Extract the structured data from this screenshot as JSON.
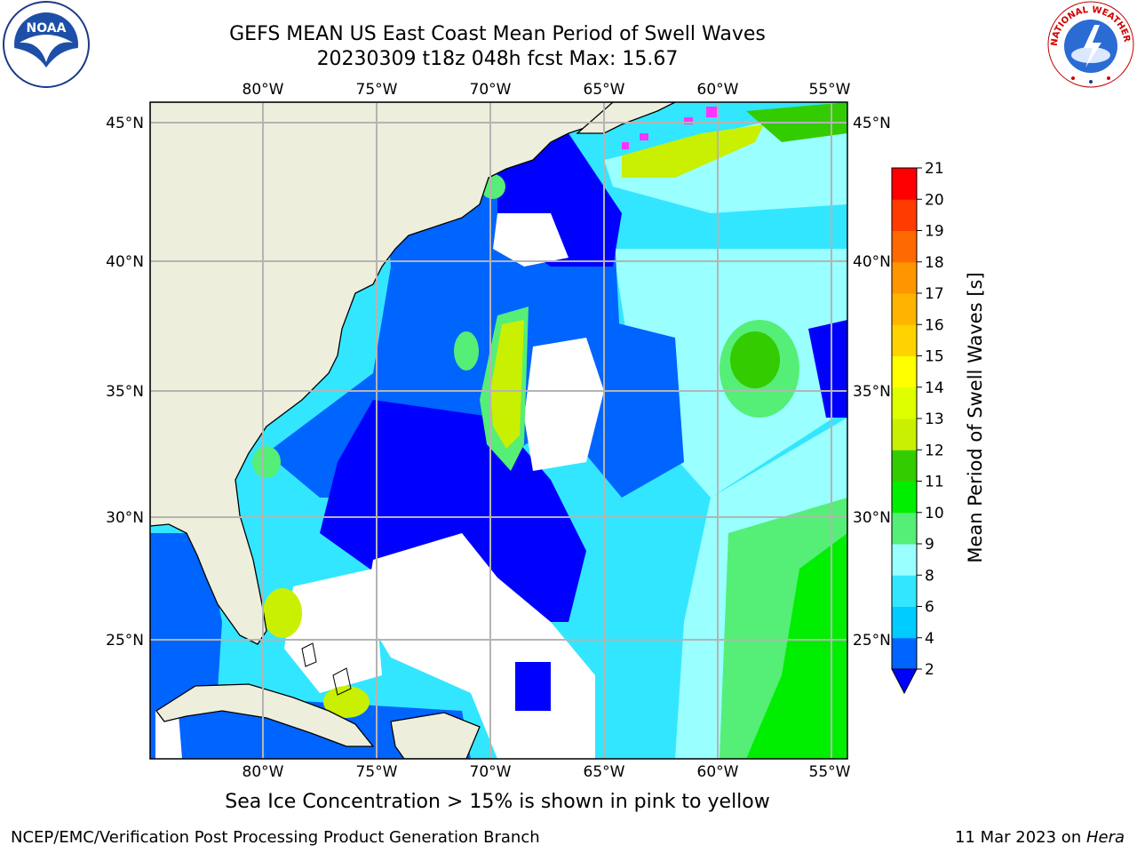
{
  "title": {
    "line1": "GEFS MEAN US East Coast Mean Period of Swell Waves",
    "line2": "20230309 t18z 048h fcst   Max: 15.67"
  },
  "logos": {
    "left": {
      "name": "noaa-logo",
      "text": "NOAA"
    },
    "right": {
      "name": "nws-logo",
      "text": "NATIONAL WEATHER SERVICE"
    }
  },
  "map": {
    "lon_ticks": [
      "80°W",
      "75°W",
      "70°W",
      "65°W",
      "60°W",
      "55°W"
    ],
    "lat_ticks": [
      "45°N",
      "40°N",
      "35°N",
      "30°N",
      "25°N"
    ],
    "extent": {
      "lon_min": -85,
      "lon_max": -54.2,
      "lat_min": 20.5,
      "lat_max": 46.2
    },
    "colors": {
      "land": "#eeeedc",
      "grid": "#b4b4b4",
      "coast": "#000000",
      "no_data": "#ffffff"
    }
  },
  "colorbar": {
    "label": "Mean Period of Swell Waves [s]",
    "ticks": [
      "2",
      "4",
      "6",
      "8",
      "9",
      "10",
      "11",
      "12",
      "13",
      "14",
      "15",
      "16",
      "17",
      "18",
      "19",
      "20",
      "21"
    ],
    "bins": [
      {
        "from": 2,
        "to": 4,
        "color": "#0064ff"
      },
      {
        "from": 4,
        "to": 6,
        "color": "#00ccff"
      },
      {
        "from": 6,
        "to": 8,
        "color": "#33e6ff"
      },
      {
        "from": 8,
        "to": 9,
        "color": "#99ffff"
      },
      {
        "from": 9,
        "to": 10,
        "color": "#55ee77"
      },
      {
        "from": 10,
        "to": 11,
        "color": "#00ee00"
      },
      {
        "from": 11,
        "to": 12,
        "color": "#33cc00"
      },
      {
        "from": 12,
        "to": 13,
        "color": "#c8f000"
      },
      {
        "from": 13,
        "to": 14,
        "color": "#ddff00"
      },
      {
        "from": 14,
        "to": 15,
        "color": "#ffff00"
      },
      {
        "from": 15,
        "to": 16,
        "color": "#ffd200"
      },
      {
        "from": 16,
        "to": 17,
        "color": "#ffb400"
      },
      {
        "from": 17,
        "to": 18,
        "color": "#ff9600"
      },
      {
        "from": 18,
        "to": 19,
        "color": "#ff6a00"
      },
      {
        "from": 19,
        "to": 20,
        "color": "#ff3c00"
      },
      {
        "from": 20,
        "to": 21,
        "color": "#ff0000"
      }
    ],
    "under_color": "#0000ff"
  },
  "footer": {
    "note": "Sea Ice Concentration > 15% is shown in pink to yellow",
    "left": "NCEP/EMC/Verification Post Processing Product Generation Branch",
    "date": "11 Mar 2023 on ",
    "host": "Hera"
  }
}
